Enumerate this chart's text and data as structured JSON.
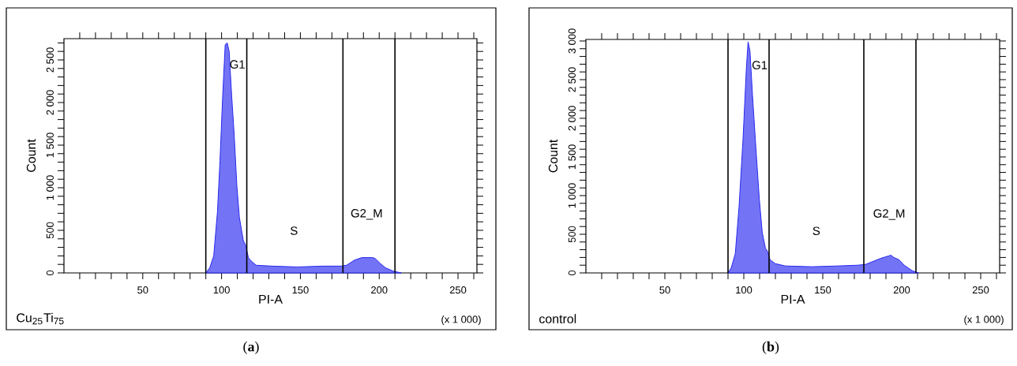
{
  "chart_data": [
    {
      "type": "area",
      "xlabel": "PI-A",
      "ylabel": "Count",
      "xlim": [
        0,
        262
      ],
      "ylim": [
        0,
        2750
      ],
      "xticks": [
        {
          "value": 10,
          "label": null
        },
        {
          "value": 20,
          "label": null
        },
        {
          "value": 30,
          "label": null
        },
        {
          "value": 40,
          "label": null
        },
        50,
        {
          "value": 60,
          "label": null
        },
        {
          "value": 70,
          "label": null
        },
        {
          "value": 80,
          "label": null
        },
        {
          "value": 90,
          "label": null
        },
        100,
        {
          "value": 110,
          "label": null
        },
        {
          "value": 120,
          "label": null
        },
        {
          "value": 130,
          "label": null
        },
        {
          "value": 140,
          "label": null
        },
        150,
        {
          "value": 160,
          "label": null
        },
        {
          "value": 170,
          "label": null
        },
        {
          "value": 180,
          "label": null
        },
        {
          "value": 190,
          "label": null
        },
        200,
        {
          "value": 210,
          "label": null
        },
        {
          "value": 220,
          "label": null
        },
        {
          "value": 230,
          "label": null
        },
        {
          "value": 240,
          "label": null
        },
        250,
        {
          "value": 260,
          "label": null
        }
      ],
      "yticks": [
        0,
        {
          "value": 100,
          "label": null
        },
        {
          "value": 200,
          "label": null
        },
        {
          "value": 300,
          "label": null
        },
        {
          "value": 400,
          "label": null
        },
        500,
        {
          "value": 600,
          "label": null
        },
        {
          "value": 700,
          "label": null
        },
        {
          "value": 800,
          "label": null
        },
        {
          "value": 900,
          "label": null
        },
        {
          "value": 1000,
          "label": "1 000"
        },
        {
          "value": 1100,
          "label": null
        },
        {
          "value": 1200,
          "label": null
        },
        {
          "value": 1300,
          "label": null
        },
        {
          "value": 1400,
          "label": null
        },
        {
          "value": 1500,
          "label": "1 500"
        },
        {
          "value": 1600,
          "label": null
        },
        {
          "value": 1700,
          "label": null
        },
        {
          "value": 1800,
          "label": null
        },
        {
          "value": 1900,
          "label": null
        },
        {
          "value": 2000,
          "label": "2 000"
        },
        {
          "value": 2100,
          "label": null
        },
        {
          "value": 2200,
          "label": null
        },
        {
          "value": 2300,
          "label": null
        },
        {
          "value": 2400,
          "label": null
        },
        {
          "value": 2500,
          "label": "2 500"
        },
        {
          "value": 2600,
          "label": null
        },
        {
          "value": 2700,
          "label": null
        }
      ],
      "x": [
        90,
        92.5,
        95,
        97.4,
        99,
        100.7,
        102.3,
        103.6,
        104.8,
        106.4,
        108,
        109.7,
        111.3,
        113.8,
        115.4,
        117,
        118.7,
        122,
        131.8,
        148,
        164.6,
        176,
        179.3,
        184.3,
        189,
        195.7,
        197.4,
        200.7,
        204,
        209,
        214
      ],
      "series": [
        {
          "color": "#2828f0",
          "values": [
            0,
            60,
            200,
            720,
            1320,
            2080,
            2680,
            2700,
            2600,
            2080,
            1620,
            1020,
            650,
            380,
            320,
            180,
            140,
            90,
            80,
            70,
            80,
            80,
            90,
            150,
            180,
            180,
            170,
            110,
            60,
            20,
            0
          ]
        }
      ],
      "ref_lines": [
        {
          "axis": "x",
          "value": 90,
          "color": "#000000"
        },
        {
          "axis": "x",
          "value": 116,
          "color": "#000000"
        },
        {
          "axis": "x",
          "value": 177,
          "color": "#000000"
        },
        {
          "axis": "x",
          "value": 210,
          "color": "#000000"
        }
      ],
      "annotations": [
        "Cu$_{25}$Ti$_{75}$",
        "(x 1 000)",
        "(**a**)",
        "G1",
        "S",
        "G2_M"
      ]
    },
    {
      "type": "area",
      "xlabel": "PI-A",
      "ylabel": "Count",
      "xlim": [
        0,
        262
      ],
      "ylim": [
        0,
        3020
      ],
      "xticks": [
        {
          "value": 10,
          "label": null
        },
        {
          "value": 20,
          "label": null
        },
        {
          "value": 30,
          "label": null
        },
        {
          "value": 40,
          "label": null
        },
        50,
        {
          "value": 60,
          "label": null
        },
        {
          "value": 70,
          "label": null
        },
        {
          "value": 80,
          "label": null
        },
        {
          "value": 90,
          "label": null
        },
        100,
        {
          "value": 110,
          "label": null
        },
        {
          "value": 120,
          "label": null
        },
        {
          "value": 130,
          "label": null
        },
        {
          "value": 140,
          "label": null
        },
        150,
        {
          "value": 160,
          "label": null
        },
        {
          "value": 170,
          "label": null
        },
        {
          "value": 180,
          "label": null
        },
        {
          "value": 190,
          "label": null
        },
        200,
        {
          "value": 210,
          "label": null
        },
        {
          "value": 220,
          "label": null
        },
        {
          "value": 230,
          "label": null
        },
        {
          "value": 240,
          "label": null
        },
        250,
        {
          "value": 260,
          "label": null
        }
      ],
      "yticks": [
        0,
        {
          "value": 100,
          "label": null
        },
        {
          "value": 200,
          "label": null
        },
        {
          "value": 300,
          "label": null
        },
        {
          "value": 400,
          "label": null
        },
        500,
        {
          "value": 600,
          "label": null
        },
        {
          "value": 700,
          "label": null
        },
        {
          "value": 800,
          "label": null
        },
        {
          "value": 900,
          "label": null
        },
        {
          "value": 1000,
          "label": "1 000"
        },
        {
          "value": 1100,
          "label": null
        },
        {
          "value": 1200,
          "label": null
        },
        {
          "value": 1300,
          "label": null
        },
        {
          "value": 1400,
          "label": null
        },
        {
          "value": 1500,
          "label": "1 500"
        },
        {
          "value": 1600,
          "label": null
        },
        {
          "value": 1700,
          "label": null
        },
        {
          "value": 1800,
          "label": null
        },
        {
          "value": 1900,
          "label": null
        },
        {
          "value": 2000,
          "label": "2 000"
        },
        {
          "value": 2100,
          "label": null
        },
        {
          "value": 2200,
          "label": null
        },
        {
          "value": 2300,
          "label": null
        },
        {
          "value": 2400,
          "label": null
        },
        {
          "value": 2500,
          "label": "2 500"
        },
        {
          "value": 2600,
          "label": null
        },
        {
          "value": 2700,
          "label": null
        },
        {
          "value": 2800,
          "label": null
        },
        {
          "value": 2900,
          "label": null
        },
        {
          "value": 3000,
          "label": "3 000"
        }
      ],
      "x": [
        90,
        92.1,
        94.6,
        97,
        99.5,
        101.6,
        102.7,
        103.9,
        105.5,
        107.6,
        109.8,
        111.7,
        113.7,
        115.3,
        116.6,
        119.9,
        126.4,
        142.8,
        159.1,
        172.2,
        177.1,
        182,
        186.9,
        191.8,
        193.1,
        195,
        198.3,
        201.6,
        206.5,
        210.6
      ],
      "series": [
        {
          "color": "#2828f0",
          "values": [
            0,
            70,
            250,
            860,
            1730,
            2640,
            2990,
            2870,
            2300,
            1630,
            960,
            520,
            320,
            270,
            170,
            120,
            90,
            80,
            90,
            100,
            110,
            150,
            190,
            220,
            230,
            200,
            170,
            100,
            30,
            0
          ]
        }
      ],
      "ref_lines": [
        {
          "axis": "x",
          "value": 90,
          "color": "#000000"
        },
        {
          "axis": "x",
          "value": 116,
          "color": "#000000"
        },
        {
          "axis": "x",
          "value": 176,
          "color": "#000000"
        },
        {
          "axis": "x",
          "value": 209,
          "color": "#000000"
        }
      ],
      "annotations": [
        "control",
        "(x 1 000)",
        "(**b**)",
        "G1",
        "S",
        "G2_M"
      ]
    }
  ]
}
